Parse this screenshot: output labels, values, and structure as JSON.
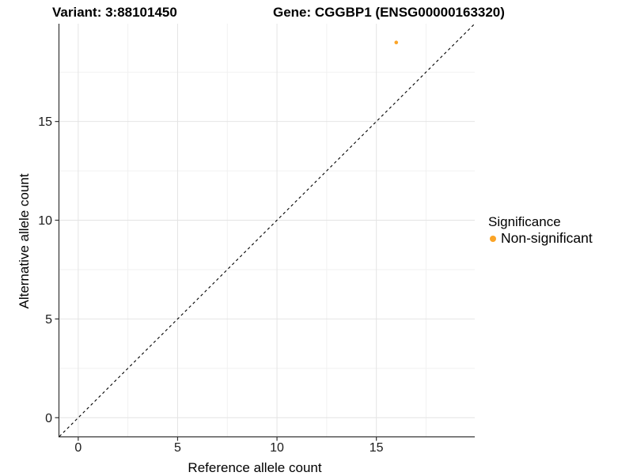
{
  "chart_data": {
    "type": "scatter",
    "titles": {
      "variant": "Variant: 3:88101450",
      "gene": "Gene: CGGBP1 (ENSG00000163320)"
    },
    "xlabel": "Reference allele count",
    "ylabel": "Alternative allele count",
    "xlim": [
      -0.95,
      19.95
    ],
    "ylim": [
      -0.95,
      19.95
    ],
    "x_major_ticks": [
      0,
      5,
      10,
      15
    ],
    "y_major_ticks": [
      0,
      5,
      10,
      15
    ],
    "x_minor_ticks": [
      2.5,
      7.5,
      12.5,
      17.5
    ],
    "y_minor_ticks": [
      2.5,
      7.5,
      12.5,
      17.5
    ],
    "grid": true,
    "identity_line": {
      "slope": 1,
      "intercept": 0,
      "linetype": "dashed",
      "color": "#000000"
    },
    "series": [
      {
        "name": "Non-significant",
        "color": "#FBA427",
        "point_radius": 2.3,
        "points": [
          {
            "x": 16,
            "y": 19
          }
        ]
      }
    ],
    "legend": {
      "title": "Significance",
      "position": "right",
      "entries": [
        {
          "label": "Non-significant",
          "color": "#FBA427"
        }
      ]
    }
  },
  "colors": {
    "background": "#FFFFFF",
    "grid_major": "#E4E4E4",
    "grid_minor": "#F1F1F1",
    "axis": "#333333",
    "tick_text": "#1A1A1A",
    "point_orange": "#FBA427"
  }
}
